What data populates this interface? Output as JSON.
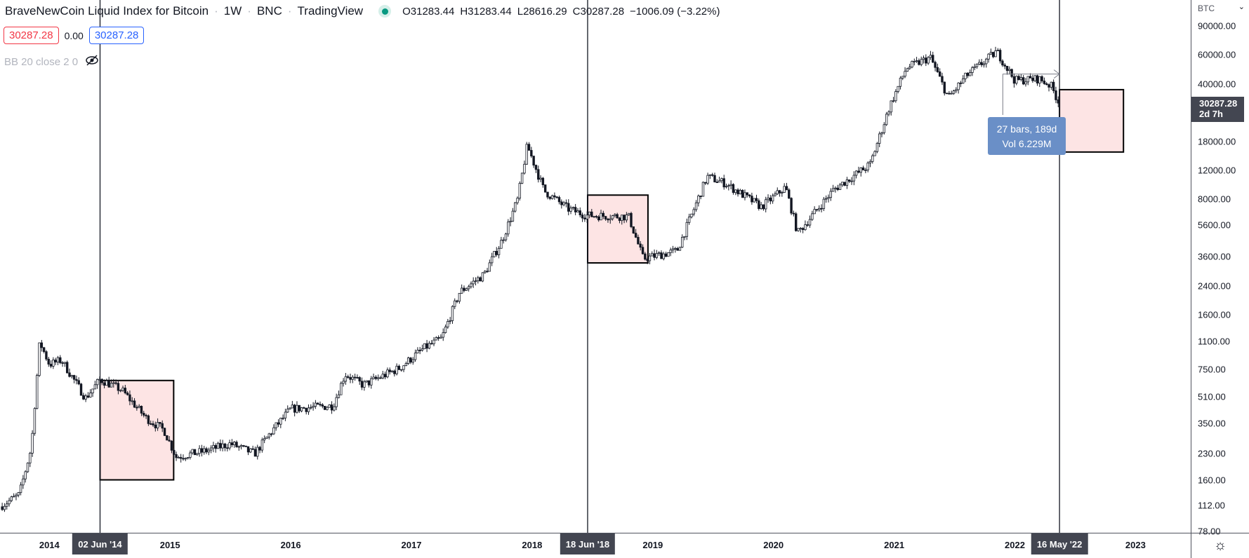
{
  "header": {
    "symbol": "BraveNewCoin Liquid Index for Bitcoin",
    "interval": "1W",
    "exchange": "BNC",
    "source": "TradingView",
    "open": "O31283.44",
    "high": "H31283.44",
    "low": "L28616.29",
    "close": "C30287.28",
    "change": "−1006.09 (−3.22%)",
    "sep": "·"
  },
  "quote": {
    "bid": "30287.28",
    "spread": "0.00",
    "ask": "30287.28"
  },
  "indicator": {
    "label": "BB 20 close 2 0",
    "icon": "eye-hidden-icon"
  },
  "price_axis": {
    "currency": "BTC",
    "ticks": [
      "90000.00",
      "60000.00",
      "40000.00",
      "18000.00",
      "12000.00",
      "8000.00",
      "5600.00",
      "3600.00",
      "2400.00",
      "1600.00",
      "1100.00",
      "750.00",
      "510.00",
      "350.00",
      "230.00",
      "160.00",
      "112.00",
      "78.00"
    ],
    "current_price": "30287.28",
    "countdown": "2d 7h"
  },
  "time_axis": {
    "years": [
      "2014",
      "2015",
      "2016",
      "2017",
      "2018",
      "2019",
      "2020",
      "2021",
      "2022",
      "2023"
    ],
    "markers": [
      "02 Jun '14",
      "18 Jun '18",
      "16 May '22"
    ]
  },
  "measure": {
    "bars": "27 bars, 189d",
    "vol": "Vol 6.229M"
  },
  "colors": {
    "up": "#ffffff",
    "down": "#131722",
    "box_fill": "#fde4e4",
    "tooltip": "#6a8fc7"
  },
  "chart_data": {
    "type": "candlestick",
    "scale": "log",
    "ylim": [
      78,
      95000
    ],
    "xlim": [
      2013.59,
      2023.6
    ],
    "price_path": [
      [
        2013.59,
        110
      ],
      [
        2013.75,
        130
      ],
      [
        2013.85,
        250
      ],
      [
        2013.92,
        1100
      ],
      [
        2014.0,
        800
      ],
      [
        2014.1,
        850
      ],
      [
        2014.3,
        500
      ],
      [
        2014.42,
        650
      ],
      [
        2014.6,
        560
      ],
      [
        2014.8,
        380
      ],
      [
        2014.95,
        320
      ],
      [
        2015.05,
        220
      ],
      [
        2015.3,
        240
      ],
      [
        2015.5,
        265
      ],
      [
        2015.7,
        230
      ],
      [
        2015.85,
        320
      ],
      [
        2016.0,
        430
      ],
      [
        2016.35,
        450
      ],
      [
        2016.45,
        700
      ],
      [
        2016.6,
        600
      ],
      [
        2016.9,
        760
      ],
      [
        2017.1,
        1000
      ],
      [
        2017.25,
        1150
      ],
      [
        2017.4,
        2200
      ],
      [
        2017.6,
        2800
      ],
      [
        2017.75,
        4500
      ],
      [
        2017.88,
        8000
      ],
      [
        2017.96,
        17000
      ],
      [
        2018.1,
        9000
      ],
      [
        2018.3,
        7000
      ],
      [
        2018.45,
        6400
      ],
      [
        2018.8,
        6300
      ],
      [
        2018.92,
        3500
      ],
      [
        2019.2,
        3900
      ],
      [
        2019.45,
        11000
      ],
      [
        2019.6,
        10000
      ],
      [
        2019.9,
        7200
      ],
      [
        2020.1,
        9500
      ],
      [
        2020.2,
        5000
      ],
      [
        2020.5,
        9200
      ],
      [
        2020.8,
        13000
      ],
      [
        2020.96,
        29000
      ],
      [
        2021.1,
        50000
      ],
      [
        2021.3,
        58000
      ],
      [
        2021.45,
        33000
      ],
      [
        2021.6,
        45000
      ],
      [
        2021.85,
        63000
      ],
      [
        2022.0,
        42000
      ],
      [
        2022.2,
        43000
      ],
      [
        2022.3,
        39000
      ],
      [
        2022.37,
        30287
      ]
    ],
    "boxes": [
      {
        "from": 2014.42,
        "to": 2015.03,
        "high": 640,
        "low": 160
      },
      {
        "from": 2018.46,
        "to": 2018.96,
        "high": 8500,
        "low": 3300
      },
      {
        "from": 2022.37,
        "to": 2022.9,
        "high": 37000,
        "low": 15500
      }
    ]
  }
}
